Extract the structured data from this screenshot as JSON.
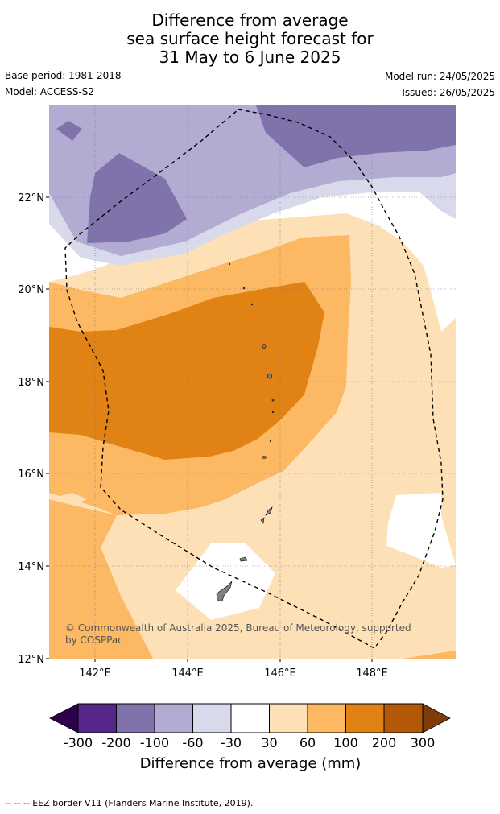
{
  "title": {
    "line1": "Difference from average",
    "line2": "sea surface height forecast for",
    "line3": "31 May to 6 June 2025"
  },
  "meta": {
    "base_period": "Base period: 1981-2018",
    "model": "Model: ACCESS-S2",
    "model_run": "Model run: 24/05/2025",
    "issued": "Issued: 26/05/2025"
  },
  "map": {
    "lat_ticks": [
      "22°N",
      "20°N",
      "18°N",
      "16°N",
      "14°N",
      "12°N"
    ],
    "lon_ticks": [
      "142°E",
      "144°E",
      "146°E",
      "148°E"
    ],
    "credit_line1": "© Commonwealth of Australia 2025, Bureau of Meteorology, supported",
    "credit_line2": "by COSPPac"
  },
  "colorbar": {
    "tick_labels": [
      "-300",
      "-200",
      "-100",
      "-60",
      "-30",
      "30",
      "60",
      "100",
      "200",
      "300"
    ],
    "title": "Difference from average (mm)",
    "colors": [
      "#2d004b",
      "#542788",
      "#8073ac",
      "#b2abd2",
      "#d8daeb",
      "#ffffff",
      "#fee0b6",
      "#fdb863",
      "#e08214",
      "#b35806",
      "#7f3b08"
    ]
  },
  "footer": "--  --  -- EEZ border V11 (Flanders Marine Institute, 2019)."
}
